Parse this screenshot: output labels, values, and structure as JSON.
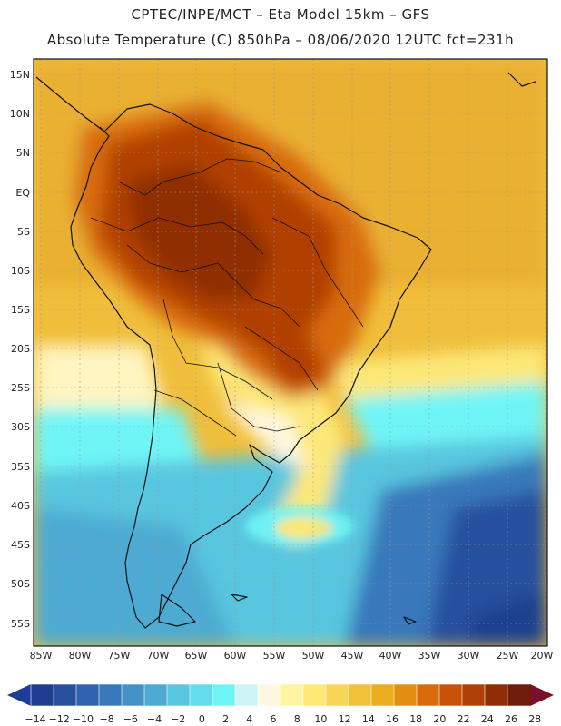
{
  "header": {
    "line1": "CPTEC/INPE/MCT –  Eta Model 15km – GFS",
    "line2": "Absolute Temperature (C) 850hPa – 08/06/2020 12UTC fct=231h"
  },
  "axes": {
    "lat_labels": [
      "15N",
      "10N",
      "5N",
      "EQ",
      "5S",
      "10S",
      "15S",
      "20S",
      "25S",
      "30S",
      "35S",
      "40S",
      "45S",
      "50S",
      "55S"
    ],
    "lon_labels": [
      "85W",
      "80W",
      "75W",
      "70W",
      "65W",
      "60W",
      "55W",
      "50W",
      "45W",
      "40W",
      "35W",
      "30W",
      "25W",
      "20W"
    ]
  },
  "colorbar": {
    "labels": [
      "-14",
      "-12",
      "-10",
      "-8",
      "-6",
      "-4",
      "-2",
      "0",
      "2",
      "4",
      "6",
      "8",
      "10",
      "12",
      "14",
      "16",
      "18",
      "20",
      "22",
      "24",
      "26",
      "28"
    ],
    "colors": [
      "#1e3f8f",
      "#27509e",
      "#2f63ad",
      "#3878bb",
      "#4492c7",
      "#4eaad2",
      "#59c6df",
      "#63dcec",
      "#6ff5f7",
      "#cdf5f5",
      "#fff8e0",
      "#fff5a0",
      "#fde878",
      "#f8d458",
      "#f0c238",
      "#eaae1e",
      "#e28e10",
      "#d86c0a",
      "#c85208",
      "#b14006",
      "#8f2e06",
      "#6e1c0c"
    ],
    "left_arrow_color": "#203c9a",
    "right_arrow_color": "#7a0f2a"
  }
}
